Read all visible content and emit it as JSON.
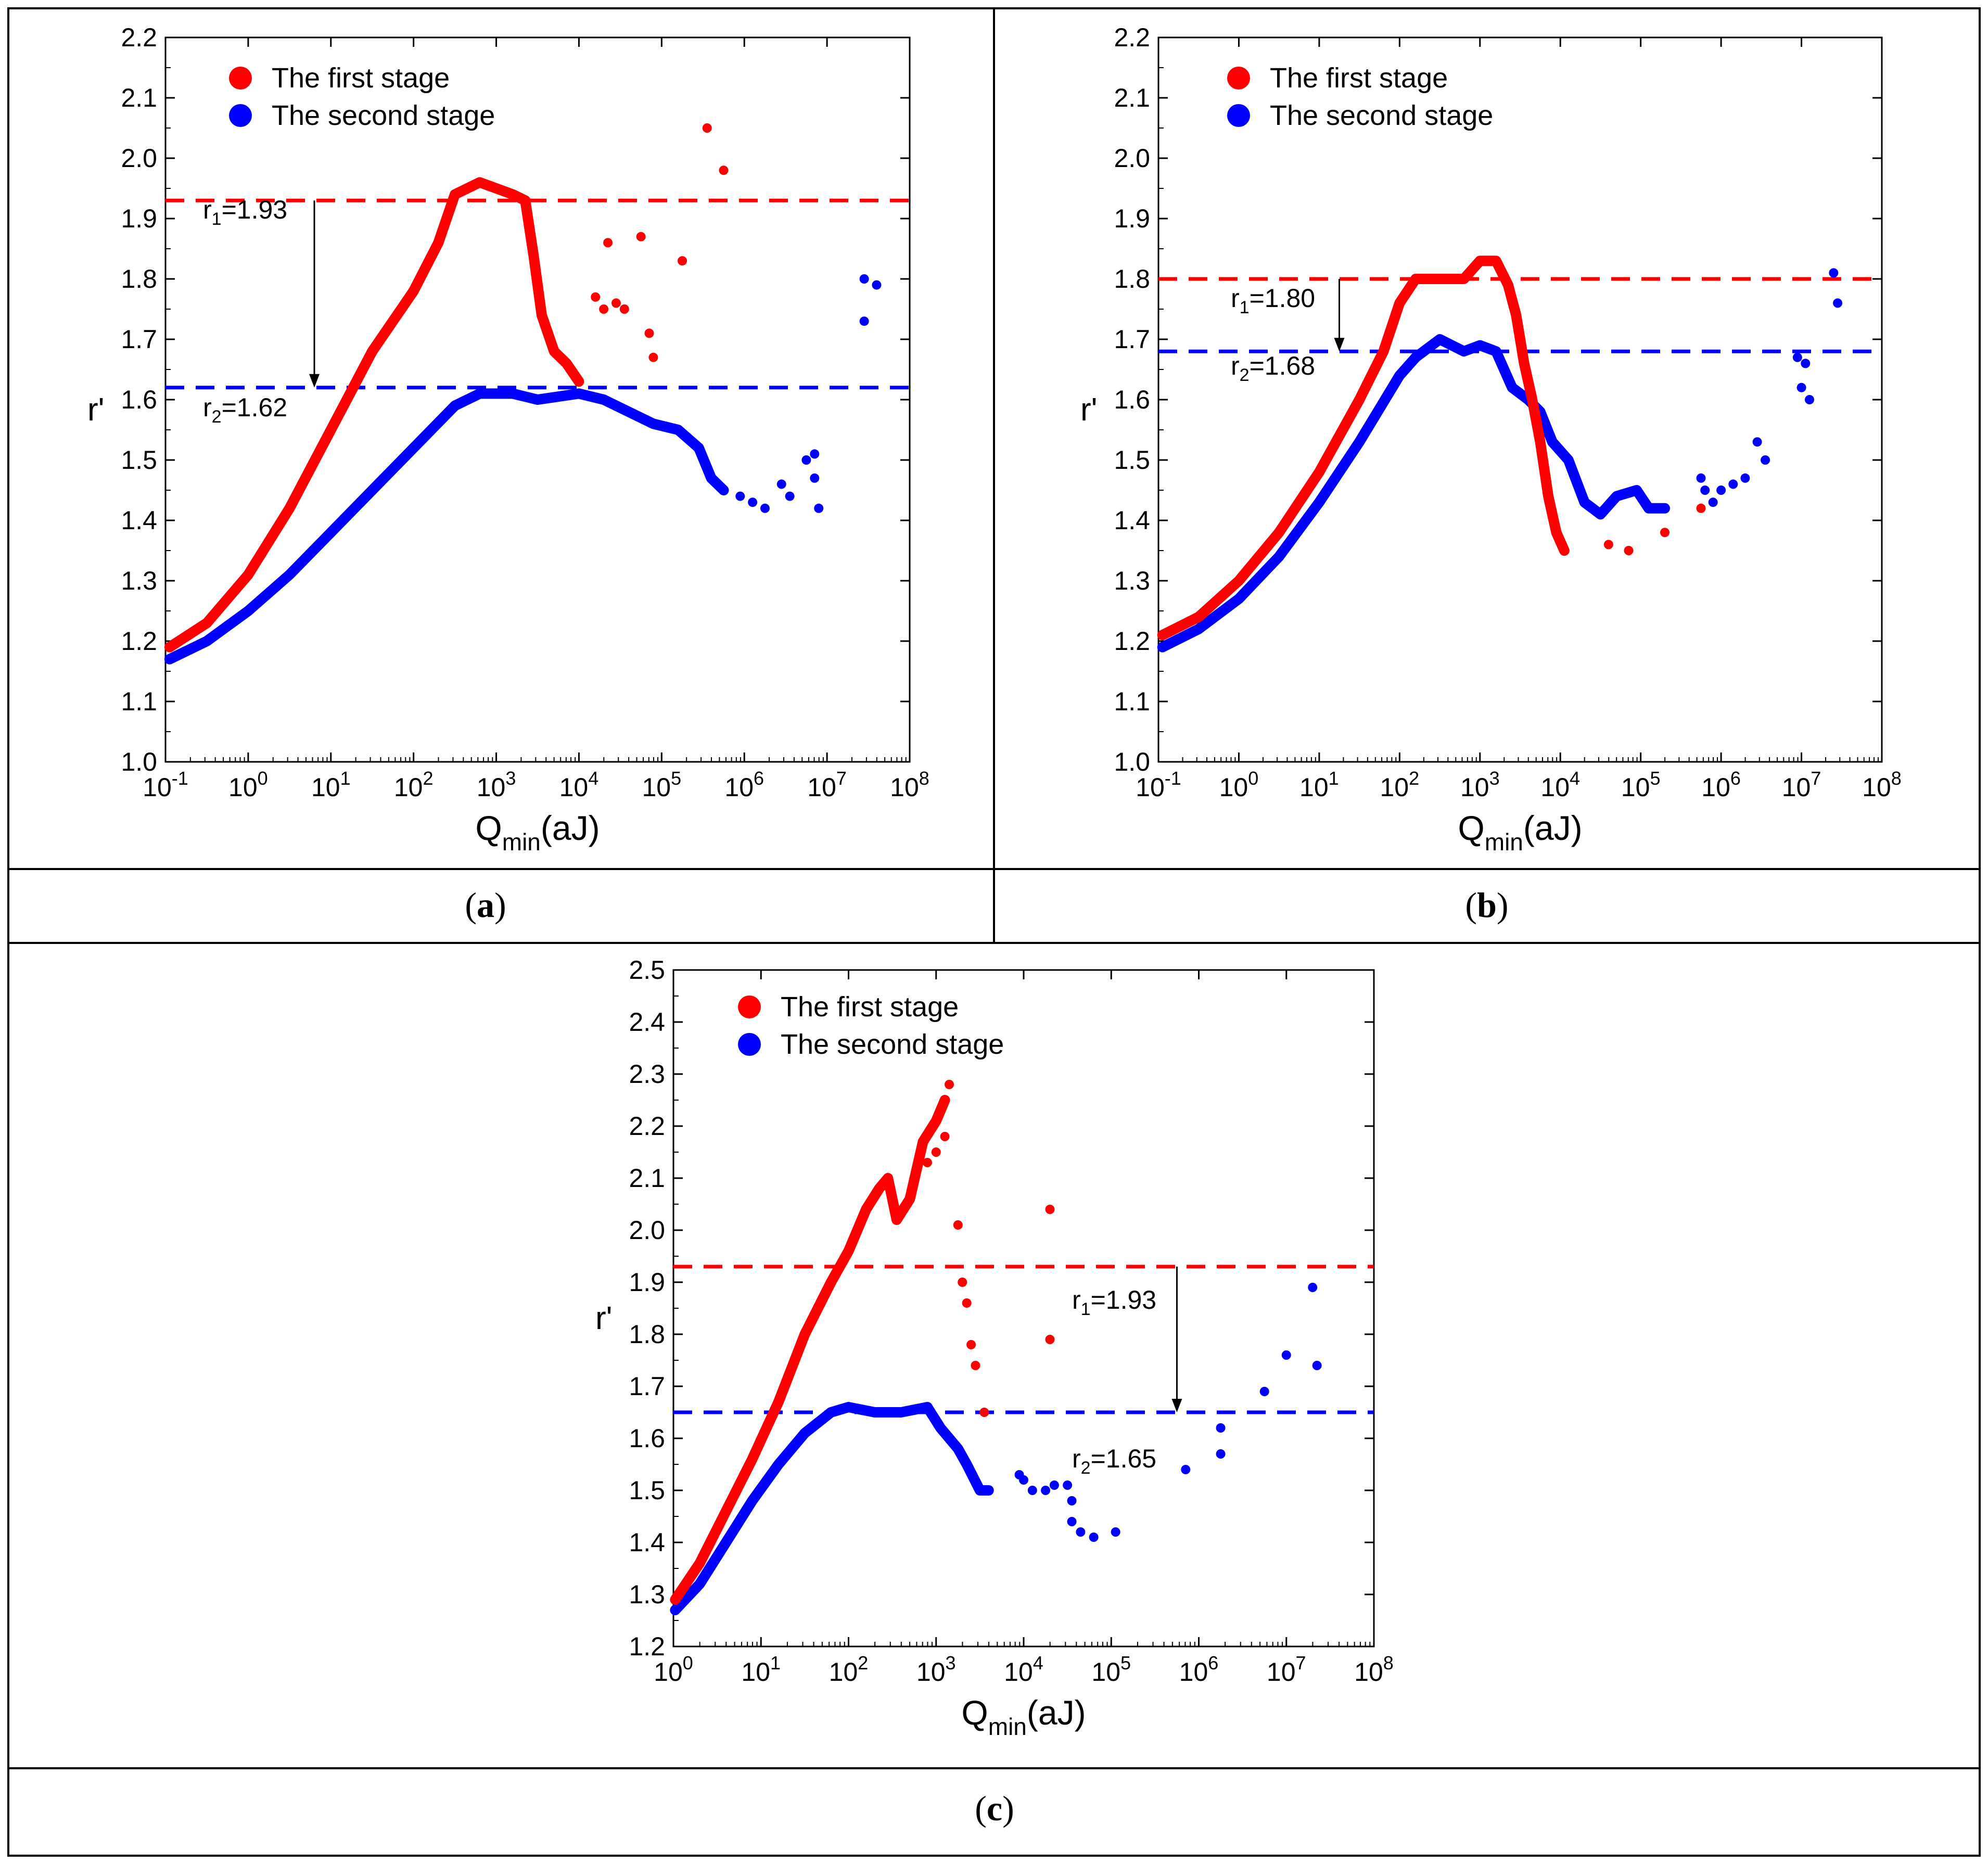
{
  "figure": {
    "captions": [
      "a",
      "b",
      "c"
    ]
  },
  "chart_data": [
    {
      "panel": "a",
      "type": "scatter",
      "xscale": "log",
      "xlim_exp": [
        -1,
        8
      ],
      "ylim": [
        1.0,
        2.2
      ],
      "ytick_step": 0.1,
      "ylabel": "r'",
      "xlabel": {
        "main": "Q",
        "sub": "min",
        "unit": "(aJ)"
      },
      "legend": [
        "The first stage",
        "The second stage"
      ],
      "colors": {
        "first": "#ff0000",
        "second": "#0000ff"
      },
      "hlines": [
        {
          "name": "r1",
          "y": 1.93,
          "label_main": "r",
          "label_sub": "1",
          "label_value": "=1.93",
          "color": "#ff0000"
        },
        {
          "name": "r2",
          "y": 1.62,
          "label_main": "r",
          "label_sub": "2",
          "label_value": "=1.62",
          "color": "#0000ff"
        }
      ],
      "arrow_x_exp": 0.8,
      "curve_first": [
        [
          -0.95,
          1.19
        ],
        [
          -0.5,
          1.23
        ],
        [
          0,
          1.31
        ],
        [
          0.5,
          1.42
        ],
        [
          1,
          1.55
        ],
        [
          1.5,
          1.68
        ],
        [
          2,
          1.78
        ],
        [
          2.3,
          1.86
        ],
        [
          2.5,
          1.94
        ],
        [
          2.8,
          1.96
        ],
        [
          3,
          1.95
        ],
        [
          3.2,
          1.94
        ],
        [
          3.35,
          1.93
        ],
        [
          3.45,
          1.84
        ],
        [
          3.55,
          1.74
        ],
        [
          3.7,
          1.68
        ],
        [
          3.85,
          1.66
        ],
        [
          4.0,
          1.63
        ]
      ],
      "curve_second": [
        [
          -0.95,
          1.17
        ],
        [
          -0.5,
          1.2
        ],
        [
          0,
          1.25
        ],
        [
          0.5,
          1.31
        ],
        [
          1,
          1.38
        ],
        [
          1.5,
          1.45
        ],
        [
          2,
          1.52
        ],
        [
          2.5,
          1.59
        ],
        [
          2.8,
          1.61
        ],
        [
          3.2,
          1.61
        ],
        [
          3.5,
          1.6
        ],
        [
          4,
          1.61
        ],
        [
          4.3,
          1.6
        ],
        [
          4.6,
          1.58
        ],
        [
          4.9,
          1.56
        ],
        [
          5.2,
          1.55
        ],
        [
          5.45,
          1.52
        ],
        [
          5.6,
          1.47
        ],
        [
          5.75,
          1.45
        ]
      ],
      "scatter_first": [
        [
          4.2,
          1.77
        ],
        [
          4.3,
          1.75
        ],
        [
          4.35,
          1.86
        ],
        [
          4.45,
          1.76
        ],
        [
          4.55,
          1.75
        ],
        [
          4.75,
          1.87
        ],
        [
          4.85,
          1.71
        ],
        [
          4.9,
          1.67
        ],
        [
          5.25,
          1.83
        ],
        [
          5.55,
          2.05
        ],
        [
          5.75,
          1.98
        ]
      ],
      "scatter_second": [
        [
          5.95,
          1.44
        ],
        [
          6.1,
          1.43
        ],
        [
          6.25,
          1.42
        ],
        [
          6.45,
          1.46
        ],
        [
          6.55,
          1.44
        ],
        [
          6.75,
          1.5
        ],
        [
          6.85,
          1.51
        ],
        [
          6.85,
          1.47
        ],
        [
          6.9,
          1.42
        ],
        [
          7.45,
          1.8
        ],
        [
          7.45,
          1.73
        ],
        [
          7.6,
          1.79
        ]
      ]
    },
    {
      "panel": "b",
      "type": "scatter",
      "xscale": "log",
      "xlim_exp": [
        -1,
        8
      ],
      "ylim": [
        1.0,
        2.2
      ],
      "ytick_step": 0.1,
      "ylabel": "r'",
      "xlabel": {
        "main": "Q",
        "sub": "min",
        "unit": "(aJ)"
      },
      "legend": [
        "The first stage",
        "The second stage"
      ],
      "colors": {
        "first": "#ff0000",
        "second": "#0000ff"
      },
      "hlines": [
        {
          "name": "r1",
          "y": 1.8,
          "label_main": "r",
          "label_sub": "1",
          "label_value": "=1.80",
          "color": "#ff0000"
        },
        {
          "name": "r2",
          "y": 1.68,
          "label_main": "r",
          "label_sub": "2",
          "label_value": "=1.68",
          "color": "#0000ff"
        }
      ],
      "arrow_x_exp": 1.25,
      "curve_first": [
        [
          -0.95,
          1.21
        ],
        [
          -0.5,
          1.24
        ],
        [
          0,
          1.3
        ],
        [
          0.5,
          1.38
        ],
        [
          1,
          1.48
        ],
        [
          1.5,
          1.6
        ],
        [
          1.8,
          1.68
        ],
        [
          2,
          1.76
        ],
        [
          2.2,
          1.8
        ],
        [
          2.5,
          1.8
        ],
        [
          2.8,
          1.8
        ],
        [
          3,
          1.83
        ],
        [
          3.2,
          1.83
        ],
        [
          3.35,
          1.79
        ],
        [
          3.45,
          1.74
        ],
        [
          3.55,
          1.66
        ],
        [
          3.65,
          1.6
        ],
        [
          3.75,
          1.53
        ],
        [
          3.85,
          1.44
        ],
        [
          3.95,
          1.38
        ],
        [
          4.05,
          1.35
        ]
      ],
      "curve_second": [
        [
          -0.95,
          1.19
        ],
        [
          -0.5,
          1.22
        ],
        [
          0,
          1.27
        ],
        [
          0.5,
          1.34
        ],
        [
          1,
          1.43
        ],
        [
          1.5,
          1.53
        ],
        [
          2,
          1.64
        ],
        [
          2.2,
          1.67
        ],
        [
          2.5,
          1.7
        ],
        [
          2.8,
          1.68
        ],
        [
          3,
          1.69
        ],
        [
          3.2,
          1.68
        ],
        [
          3.4,
          1.62
        ],
        [
          3.6,
          1.6
        ],
        [
          3.75,
          1.58
        ],
        [
          3.9,
          1.53
        ],
        [
          4.1,
          1.5
        ],
        [
          4.3,
          1.43
        ],
        [
          4.5,
          1.41
        ],
        [
          4.7,
          1.44
        ],
        [
          4.95,
          1.45
        ],
        [
          5.1,
          1.42
        ],
        [
          5.3,
          1.42
        ]
      ],
      "scatter_first": [
        [
          4.6,
          1.36
        ],
        [
          4.85,
          1.35
        ],
        [
          5.3,
          1.38
        ],
        [
          5.75,
          1.42
        ]
      ],
      "scatter_second": [
        [
          5.75,
          1.47
        ],
        [
          5.8,
          1.45
        ],
        [
          5.9,
          1.43
        ],
        [
          6.0,
          1.45
        ],
        [
          6.15,
          1.46
        ],
        [
          6.3,
          1.47
        ],
        [
          6.45,
          1.53
        ],
        [
          6.55,
          1.5
        ],
        [
          6.95,
          1.67
        ],
        [
          7.0,
          1.62
        ],
        [
          7.05,
          1.66
        ],
        [
          7.1,
          1.6
        ],
        [
          7.4,
          1.81
        ],
        [
          7.45,
          1.76
        ]
      ]
    },
    {
      "panel": "c",
      "type": "scatter",
      "xscale": "log",
      "xlim_exp": [
        0,
        8
      ],
      "ylim": [
        1.2,
        2.5
      ],
      "ytick_step": 0.1,
      "ylabel": "r'",
      "xlabel": {
        "main": "Q",
        "sub": "min",
        "unit": "(aJ)"
      },
      "legend": [
        "The first stage",
        "The second stage"
      ],
      "colors": {
        "first": "#ff0000",
        "second": "#0000ff"
      },
      "hlines": [
        {
          "name": "r1",
          "y": 1.93,
          "label_main": "r",
          "label_sub": "1",
          "label_value": "=1.93",
          "color": "#ff0000"
        },
        {
          "name": "r2",
          "y": 1.65,
          "label_main": "r",
          "label_sub": "2",
          "label_value": "=1.65",
          "color": "#0000ff"
        }
      ],
      "arrow_x_exp": 5.75,
      "curve_first": [
        [
          0.02,
          1.29
        ],
        [
          0.3,
          1.36
        ],
        [
          0.6,
          1.46
        ],
        [
          0.9,
          1.56
        ],
        [
          1.2,
          1.67
        ],
        [
          1.5,
          1.8
        ],
        [
          1.8,
          1.9
        ],
        [
          2.0,
          1.96
        ],
        [
          2.2,
          2.04
        ],
        [
          2.35,
          2.08
        ],
        [
          2.45,
          2.1
        ],
        [
          2.55,
          2.02
        ],
        [
          2.7,
          2.06
        ],
        [
          2.85,
          2.17
        ],
        [
          3.0,
          2.21
        ],
        [
          3.1,
          2.25
        ]
      ],
      "curve_second": [
        [
          0.02,
          1.27
        ],
        [
          0.3,
          1.32
        ],
        [
          0.6,
          1.4
        ],
        [
          0.9,
          1.48
        ],
        [
          1.2,
          1.55
        ],
        [
          1.5,
          1.61
        ],
        [
          1.8,
          1.65
        ],
        [
          2.0,
          1.66
        ],
        [
          2.3,
          1.65
        ],
        [
          2.6,
          1.65
        ],
        [
          2.9,
          1.66
        ],
        [
          3.05,
          1.62
        ],
        [
          3.25,
          1.58
        ],
        [
          3.35,
          1.55
        ],
        [
          3.5,
          1.5
        ],
        [
          3.6,
          1.5
        ]
      ],
      "scatter_first": [
        [
          2.9,
          2.13
        ],
        [
          3.0,
          2.15
        ],
        [
          3.1,
          2.18
        ],
        [
          3.15,
          2.28
        ],
        [
          3.25,
          2.01
        ],
        [
          3.3,
          1.9
        ],
        [
          3.35,
          1.86
        ],
        [
          3.4,
          1.78
        ],
        [
          3.45,
          1.74
        ],
        [
          3.55,
          1.65
        ],
        [
          4.3,
          1.79
        ],
        [
          4.3,
          2.04
        ]
      ],
      "scatter_second": [
        [
          3.95,
          1.53
        ],
        [
          4.0,
          1.52
        ],
        [
          4.1,
          1.5
        ],
        [
          4.25,
          1.5
        ],
        [
          4.35,
          1.51
        ],
        [
          4.5,
          1.51
        ],
        [
          4.55,
          1.48
        ],
        [
          4.55,
          1.44
        ],
        [
          4.65,
          1.42
        ],
        [
          4.8,
          1.41
        ],
        [
          5.05,
          1.42
        ],
        [
          5.85,
          1.54
        ],
        [
          6.25,
          1.62
        ],
        [
          6.25,
          1.57
        ],
        [
          6.75,
          1.69
        ],
        [
          7.0,
          1.76
        ],
        [
          7.3,
          1.89
        ],
        [
          7.35,
          1.74
        ]
      ]
    }
  ]
}
